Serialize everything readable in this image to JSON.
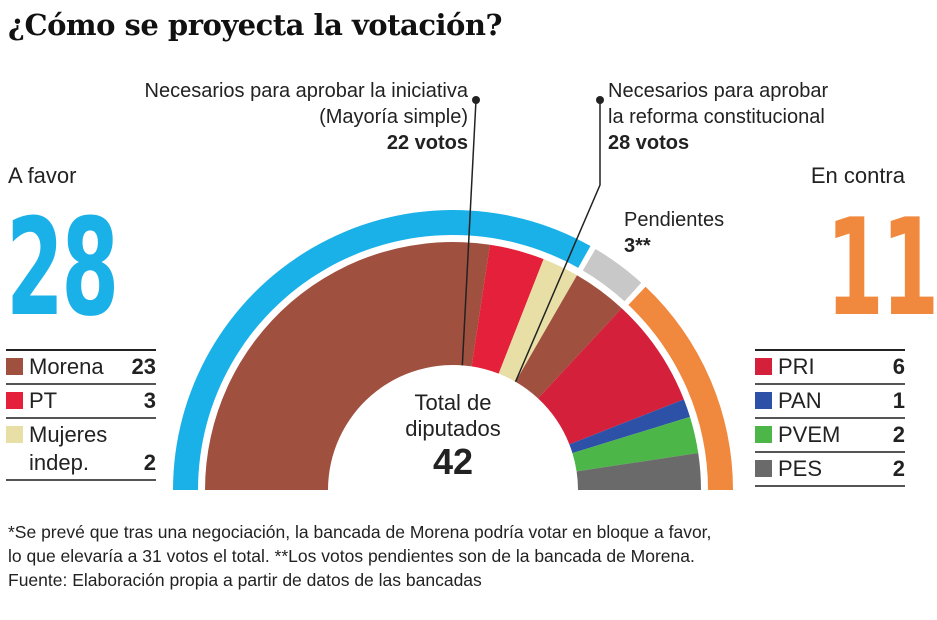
{
  "title": "¿Cómo se proyecta la votación?",
  "annotations": {
    "simple_majority": {
      "line1": "Necesarios para aprobar la iniciativa",
      "line2": "(Mayoría simple)",
      "votes": "22 votos"
    },
    "constitutional": {
      "line1": "Necesarios para aprobar",
      "line2": "la reforma constitucional",
      "votes": "28 votos"
    },
    "pending": {
      "label": "Pendientes",
      "value": "3**"
    }
  },
  "favor": {
    "label": "A favor",
    "total": "28",
    "color": "#1ab0e8"
  },
  "contra": {
    "label": "En contra",
    "total": "11",
    "color": "#f0883e"
  },
  "center": {
    "line1": "Total de",
    "line2": "diputados",
    "total": "42"
  },
  "legend_favor": [
    {
      "name": "Morena",
      "value": "23",
      "color": "#a0503f"
    },
    {
      "name": "PT",
      "value": "3",
      "color": "#e5203a"
    },
    {
      "name": "Mujeres indep.",
      "value": "2",
      "color": "#e8dfa6"
    }
  ],
  "legend_contra": [
    {
      "name": "PRI",
      "value": "6",
      "color": "#d4203a"
    },
    {
      "name": "PAN",
      "value": "1",
      "color": "#2d51a6"
    },
    {
      "name": "PVEM",
      "value": "2",
      "color": "#4cb648"
    },
    {
      "name": "PES",
      "value": "2",
      "color": "#6a6a6a"
    }
  ],
  "chart_data": {
    "type": "pie",
    "shape": "semicircle",
    "total": 42,
    "inner_ring": [
      {
        "party": "Morena",
        "group": "A favor",
        "value": 23,
        "color": "#a0503f"
      },
      {
        "party": "PT",
        "group": "A favor",
        "value": 3,
        "color": "#e5203a"
      },
      {
        "party": "Mujeres indep.",
        "group": "A favor",
        "value": 2,
        "color": "#e8dfa6"
      },
      {
        "party": "Morena",
        "group": "Pendientes",
        "value": 3,
        "color": "#a0503f"
      },
      {
        "party": "PRI",
        "group": "En contra",
        "value": 6,
        "color": "#d4203a"
      },
      {
        "party": "PAN",
        "group": "En contra",
        "value": 1,
        "color": "#2d51a6"
      },
      {
        "party": "PVEM",
        "group": "En contra",
        "value": 2,
        "color": "#4cb648"
      },
      {
        "party": "PES",
        "group": "En contra",
        "value": 2,
        "color": "#6a6a6a"
      }
    ],
    "outer_ring": [
      {
        "group": "A favor",
        "value": 28,
        "color": "#1ab0e8"
      },
      {
        "group": "Pendientes",
        "value": 3,
        "color": "#c8c8c8"
      },
      {
        "group": "En contra",
        "value": 11,
        "color": "#f0883e"
      }
    ],
    "thresholds": [
      22,
      28
    ]
  },
  "footer": {
    "line1": "*Se prevé que tras una negociación, la bancada de Morena podría votar en bloque a favor,",
    "line2": "lo que elevaría a 31 votos el total. **Los votos pendientes son de la bancada de Morena.",
    "line3": "Fuente: Elaboración propia a partir de datos de las bancadas"
  }
}
